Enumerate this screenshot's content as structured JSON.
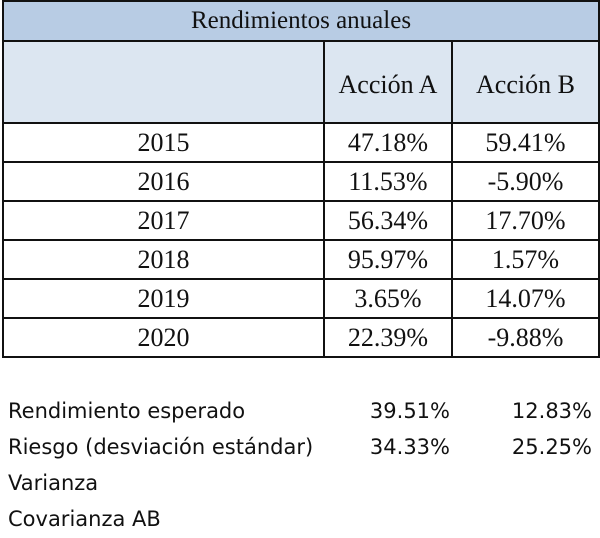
{
  "table": {
    "title": "Rendimientos anuales",
    "col_a": "Acción A",
    "col_b": "Acción B",
    "rows": [
      {
        "year": "2015",
        "a": "47.18%",
        "b": "59.41%"
      },
      {
        "year": "2016",
        "a": "11.53%",
        "b": "-5.90%"
      },
      {
        "year": "2017",
        "a": "56.34%",
        "b": "17.70%"
      },
      {
        "year": "2018",
        "a": "95.97%",
        "b": "1.57%"
      },
      {
        "year": "2019",
        "a": "3.65%",
        "b": "14.07%"
      },
      {
        "year": "2020",
        "a": "22.39%",
        "b": "-9.88%"
      }
    ]
  },
  "summary": [
    {
      "label": "Rendimiento esperado",
      "a": "39.51%",
      "b": "12.83%"
    },
    {
      "label": "Riesgo (desviación estándar)",
      "a": "34.33%",
      "b": "25.25%"
    },
    {
      "label": "Varianza",
      "a": "",
      "b": ""
    },
    {
      "label": "Covarianza AB",
      "a": "",
      "b": ""
    }
  ],
  "colors": {
    "title_fill": "#b8cce4",
    "header_fill": "#dce6f1",
    "border": "#111111"
  }
}
